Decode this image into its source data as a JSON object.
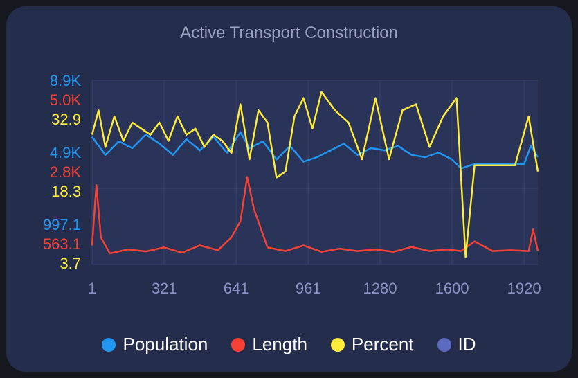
{
  "chart_data": {
    "type": "line",
    "title": "Active Transport Construction",
    "x_ticks": [
      "1",
      "321",
      "641",
      "961",
      "1280",
      "1600",
      "1920"
    ],
    "xlim": [
      1,
      1981
    ],
    "y_axes": [
      {
        "series": "Population",
        "color": "#2196f3",
        "tick_labels": [
          "997.1",
          "4.9K",
          "8.9K"
        ],
        "tick_values": [
          997.1,
          4900,
          8900
        ]
      },
      {
        "series": "Length",
        "color": "#f44336",
        "tick_labels": [
          "563.1",
          "2.8K",
          "5.0K"
        ],
        "tick_values": [
          563.1,
          2800,
          5000
        ]
      },
      {
        "series": "Percent",
        "color": "#ffeb3b",
        "tick_labels": [
          "3.7",
          "18.3",
          "32.9"
        ],
        "tick_values": [
          3.7,
          18.3,
          32.9
        ]
      }
    ],
    "series": [
      {
        "name": "Population",
        "color": "#2196f3",
        "x": [
          1,
          60,
          120,
          180,
          240,
          300,
          360,
          420,
          480,
          540,
          600,
          660,
          700,
          760,
          820,
          880,
          940,
          1000,
          1060,
          1120,
          1180,
          1240,
          1300,
          1360,
          1420,
          1480,
          1540,
          1600,
          1640,
          1700,
          1760,
          1820,
          1880,
          1920,
          1950,
          1981
        ],
        "values": [
          6400,
          5600,
          6200,
          5900,
          6500,
          6100,
          5600,
          6300,
          5800,
          6400,
          5700,
          6600,
          5900,
          6200,
          5400,
          6000,
          5300,
          5500,
          5800,
          6100,
          5600,
          5900,
          5800,
          6000,
          5600,
          5500,
          5700,
          5400,
          5000,
          5200,
          5200,
          5200,
          5200,
          5200,
          6000,
          5500
        ]
      },
      {
        "name": "Length",
        "color": "#f44336",
        "x": [
          1,
          20,
          40,
          80,
          160,
          240,
          320,
          400,
          480,
          560,
          620,
          660,
          690,
          720,
          780,
          860,
          940,
          1020,
          1100,
          1180,
          1260,
          1340,
          1420,
          1500,
          1580,
          1640,
          1700,
          1780,
          1860,
          1940,
          1960,
          1981
        ],
        "values": [
          900,
          2400,
          1100,
          700,
          800,
          750,
          850,
          720,
          900,
          780,
          1100,
          1500,
          2600,
          1800,
          850,
          760,
          900,
          740,
          820,
          760,
          800,
          740,
          860,
          760,
          800,
          760,
          1000,
          760,
          780,
          760,
          1300,
          760
        ]
      },
      {
        "name": "Percent",
        "color": "#ffeb3b",
        "x": [
          1,
          30,
          60,
          100,
          140,
          180,
          220,
          260,
          300,
          340,
          380,
          420,
          460,
          500,
          540,
          580,
          620,
          660,
          700,
          740,
          780,
          820,
          860,
          900,
          940,
          980,
          1020,
          1080,
          1140,
          1200,
          1260,
          1320,
          1380,
          1440,
          1500,
          1560,
          1620,
          1660,
          1700,
          1760,
          1820,
          1880,
          1940,
          1981
        ],
        "values": [
          24,
          28,
          22,
          27,
          23,
          26,
          25,
          24,
          26,
          23,
          27,
          24,
          25,
          22,
          24,
          23,
          21,
          29,
          20,
          28,
          26,
          17,
          18,
          27,
          30,
          25,
          31,
          28,
          26,
          20,
          30,
          20,
          28,
          29,
          22,
          27,
          30,
          4,
          19,
          19,
          19,
          19,
          27,
          18
        ]
      },
      {
        "name": "ID",
        "color": "#5c6bc0",
        "x": [],
        "values": []
      }
    ],
    "legend": [
      "Population",
      "Length",
      "Percent",
      "ID"
    ],
    "legend_position": "bottom",
    "grid": true
  }
}
